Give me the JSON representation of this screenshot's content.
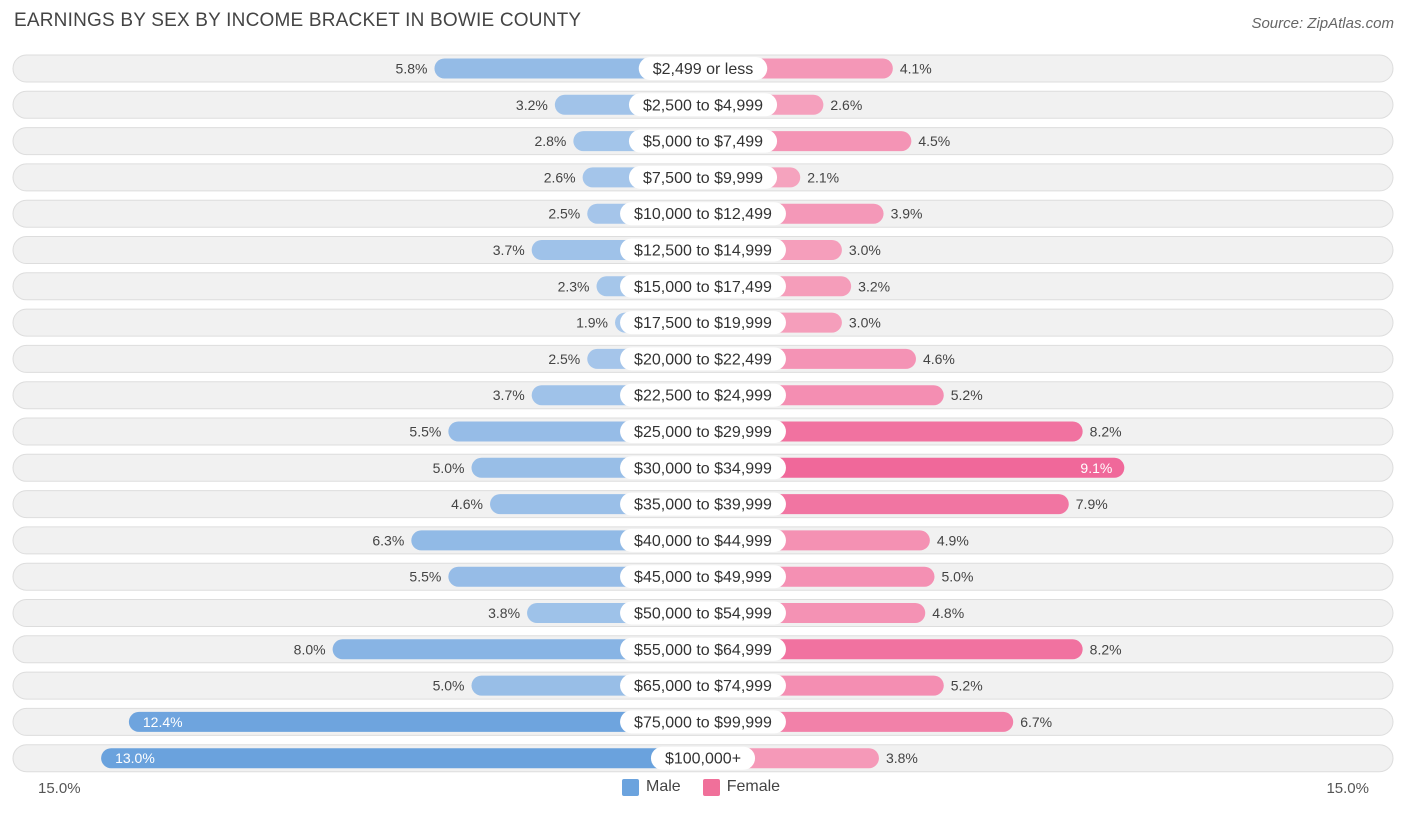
{
  "header": {
    "title": "EARNINGS BY SEX BY INCOME BRACKET IN BOWIE COUNTY",
    "source": "Source: ZipAtlas.com"
  },
  "axis": {
    "left_label": "15.0%",
    "right_label": "15.0%"
  },
  "legend": {
    "male_label": "Male",
    "female_label": "Female",
    "male_color": "#6ba3de",
    "female_color": "#f0709a"
  },
  "chart_data": {
    "type": "bar",
    "orientation": "horizontal-diverging",
    "title": "EARNINGS BY SEX BY INCOME BRACKET IN BOWIE COUNTY",
    "categories": [
      "$2,499 or less",
      "$2,500 to $4,999",
      "$5,000 to $7,499",
      "$7,500 to $9,999",
      "$10,000 to $12,499",
      "$12,500 to $14,999",
      "$15,000 to $17,499",
      "$17,500 to $19,999",
      "$20,000 to $22,499",
      "$22,500 to $24,999",
      "$25,000 to $29,999",
      "$30,000 to $34,999",
      "$35,000 to $39,999",
      "$40,000 to $44,999",
      "$45,000 to $49,999",
      "$50,000 to $54,999",
      "$55,000 to $64,999",
      "$65,000 to $74,999",
      "$75,000 to $99,999",
      "$100,000+"
    ],
    "series": [
      {
        "name": "Male",
        "values": [
          5.8,
          3.2,
          2.8,
          2.6,
          2.5,
          3.7,
          2.3,
          1.9,
          2.5,
          3.7,
          5.5,
          5.0,
          4.6,
          6.3,
          5.5,
          3.8,
          8.0,
          5.0,
          12.4,
          13.0
        ],
        "labels": [
          "5.8%",
          "3.2%",
          "2.8%",
          "2.6%",
          "2.5%",
          "3.7%",
          "2.3%",
          "1.9%",
          "2.5%",
          "3.7%",
          "5.5%",
          "5.0%",
          "4.6%",
          "6.3%",
          "5.5%",
          "3.8%",
          "8.0%",
          "5.0%",
          "12.4%",
          "13.0%"
        ]
      },
      {
        "name": "Female",
        "values": [
          4.1,
          2.6,
          4.5,
          2.1,
          3.9,
          3.0,
          3.2,
          3.0,
          4.6,
          5.2,
          8.2,
          9.1,
          7.9,
          4.9,
          5.0,
          4.8,
          8.2,
          5.2,
          6.7,
          3.8
        ],
        "labels": [
          "4.1%",
          "2.6%",
          "4.5%",
          "2.1%",
          "3.9%",
          "3.0%",
          "3.2%",
          "3.0%",
          "4.6%",
          "5.2%",
          "8.2%",
          "9.1%",
          "7.9%",
          "4.9%",
          "5.0%",
          "4.8%",
          "8.2%",
          "5.2%",
          "6.7%",
          "3.8%"
        ]
      }
    ],
    "xlim": [
      -15.0,
      15.0
    ],
    "xlabel": "",
    "ylabel": "",
    "legend_position": "bottom-center"
  }
}
